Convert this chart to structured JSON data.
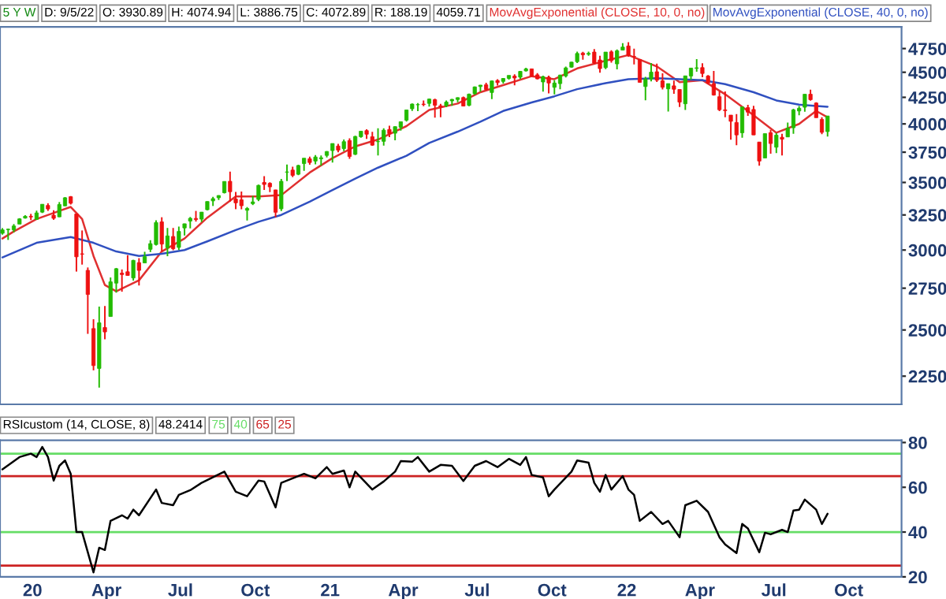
{
  "chart_data": [
    {
      "type": "candlestick",
      "title": "5 Y W",
      "annotations": [
        "D: 9/5/22",
        "O: 3930.89",
        "H: 4074.94",
        "L: 3886.75",
        "C: 4072.89",
        "R: 188.19",
        "4059.71"
      ],
      "x": [
        "2019-11-25",
        "2019-12-02",
        "2019-12-09",
        "2019-12-16",
        "2019-12-23",
        "2019-12-30",
        "2020-01-06",
        "2020-01-13",
        "2020-01-20",
        "2020-01-27",
        "2020-02-03",
        "2020-02-10",
        "2020-02-17",
        "2020-02-24",
        "2020-03-02",
        "2020-03-09",
        "2020-03-16",
        "2020-03-23",
        "2020-03-30",
        "2020-04-06",
        "2020-04-13",
        "2020-04-20",
        "2020-04-27",
        "2020-05-04",
        "2020-05-11",
        "2020-05-18",
        "2020-05-25",
        "2020-06-01",
        "2020-06-08",
        "2020-06-15",
        "2020-06-22",
        "2020-06-29",
        "2020-07-06",
        "2020-07-13",
        "2020-07-20",
        "2020-07-27",
        "2020-08-03",
        "2020-08-10",
        "2020-08-17",
        "2020-08-24",
        "2020-08-31",
        "2020-09-07",
        "2020-09-14",
        "2020-09-21",
        "2020-09-28",
        "2020-10-05",
        "2020-10-12",
        "2020-10-19",
        "2020-10-26",
        "2020-11-02",
        "2020-11-09",
        "2020-11-16",
        "2020-11-23",
        "2020-11-30",
        "2020-12-07",
        "2020-12-14",
        "2020-12-21",
        "2020-12-28",
        "2021-01-04",
        "2021-01-11",
        "2021-01-18",
        "2021-01-25",
        "2021-02-01",
        "2021-02-08",
        "2021-02-15",
        "2021-02-22",
        "2021-03-01",
        "2021-03-08",
        "2021-03-15",
        "2021-03-22",
        "2021-03-29",
        "2021-04-05",
        "2021-04-12",
        "2021-04-19",
        "2021-04-26",
        "2021-05-03",
        "2021-05-10",
        "2021-05-17",
        "2021-05-24",
        "2021-05-31",
        "2021-06-07",
        "2021-06-14",
        "2021-06-21",
        "2021-06-28",
        "2021-07-05",
        "2021-07-12",
        "2021-07-19",
        "2021-07-26",
        "2021-08-02",
        "2021-08-09",
        "2021-08-16",
        "2021-08-23",
        "2021-08-30",
        "2021-09-06",
        "2021-09-13",
        "2021-09-20",
        "2021-09-27",
        "2021-10-04",
        "2021-10-11",
        "2021-10-18",
        "2021-10-25",
        "2021-11-01",
        "2021-11-08",
        "2021-11-15",
        "2021-11-22",
        "2021-11-29",
        "2021-12-06",
        "2021-12-13",
        "2021-12-20",
        "2021-12-27",
        "2022-01-03",
        "2022-01-10",
        "2022-01-17",
        "2022-01-24",
        "2022-01-31",
        "2022-02-07",
        "2022-02-14",
        "2022-02-21",
        "2022-02-28",
        "2022-03-07",
        "2022-03-14",
        "2022-03-21",
        "2022-03-28",
        "2022-04-04",
        "2022-04-11",
        "2022-04-18",
        "2022-04-25",
        "2022-05-02",
        "2022-05-09",
        "2022-05-16",
        "2022-05-23",
        "2022-05-30",
        "2022-06-06",
        "2022-06-13",
        "2022-06-20",
        "2022-06-27",
        "2022-07-04",
        "2022-07-11",
        "2022-07-18",
        "2022-07-25",
        "2022-08-01",
        "2022-08-08",
        "2022-08-15",
        "2022-08-22",
        "2022-08-29",
        "2022-09-05"
      ],
      "ohlc": [
        [
          3117,
          3154,
          3107,
          3141
        ],
        [
          3143,
          3150,
          3070,
          3146
        ],
        [
          3141,
          3183,
          3123,
          3169
        ],
        [
          3183,
          3226,
          3183,
          3221
        ],
        [
          3227,
          3248,
          3223,
          3240
        ],
        [
          3240,
          3258,
          3212,
          3235
        ],
        [
          3217,
          3282,
          3214,
          3265
        ],
        [
          3271,
          3330,
          3264,
          3330
        ],
        [
          3321,
          3338,
          3280,
          3295
        ],
        [
          3248,
          3285,
          3214,
          3225
        ],
        [
          3236,
          3347,
          3234,
          3328
        ],
        [
          3318,
          3385,
          3316,
          3380
        ],
        [
          3388,
          3393,
          3328,
          3338
        ],
        [
          3257,
          3260,
          2856,
          2954
        ],
        [
          2974,
          3137,
          2902,
          2972
        ],
        [
          2864,
          2883,
          2478,
          2711
        ],
        [
          2508,
          2562,
          2280,
          2305
        ],
        [
          2290,
          2637,
          2192,
          2541
        ],
        [
          2514,
          2641,
          2447,
          2489
        ],
        [
          2578,
          2818,
          2577,
          2790
        ],
        [
          2782,
          2880,
          2722,
          2875
        ],
        [
          2846,
          2870,
          2728,
          2837
        ],
        [
          2855,
          2965,
          2830,
          2831
        ],
        [
          2815,
          2934,
          2798,
          2930
        ],
        [
          2915,
          2945,
          2767,
          2864
        ],
        [
          2913,
          2988,
          2913,
          2955
        ],
        [
          3005,
          3068,
          2986,
          3044
        ],
        [
          3038,
          3211,
          3031,
          3194
        ],
        [
          3199,
          3233,
          2991,
          3041
        ],
        [
          3016,
          3155,
          2958,
          3098
        ],
        [
          3094,
          3155,
          2999,
          3009
        ],
        [
          3018,
          3165,
          3000,
          3130
        ],
        [
          3155,
          3186,
          3101,
          3185
        ],
        [
          3205,
          3235,
          3152,
          3225
        ],
        [
          3224,
          3280,
          3201,
          3216
        ],
        [
          3219,
          3272,
          3198,
          3271
        ],
        [
          3289,
          3352,
          3284,
          3351
        ],
        [
          3356,
          3387,
          3317,
          3373
        ],
        [
          3380,
          3399,
          3363,
          3397
        ],
        [
          3419,
          3509,
          3413,
          3508
        ],
        [
          3509,
          3588,
          3350,
          3427
        ],
        [
          3370,
          3425,
          3293,
          3341
        ],
        [
          3364,
          3429,
          3292,
          3319
        ],
        [
          3285,
          3309,
          3209,
          3298
        ],
        [
          3335,
          3394,
          3324,
          3348
        ],
        [
          3367,
          3482,
          3354,
          3477
        ],
        [
          3500,
          3550,
          3441,
          3484
        ],
        [
          3493,
          3502,
          3424,
          3465
        ],
        [
          3441,
          3442,
          3233,
          3270
        ],
        [
          3296,
          3529,
          3279,
          3509
        ],
        [
          3583,
          3646,
          3511,
          3585
        ],
        [
          3600,
          3628,
          3543,
          3557
        ],
        [
          3566,
          3645,
          3558,
          3638
        ],
        [
          3654,
          3699,
          3594,
          3699
        ],
        [
          3694,
          3712,
          3644,
          3663
        ],
        [
          3675,
          3726,
          3647,
          3709
        ],
        [
          3694,
          3723,
          3636,
          3703
        ],
        [
          3723,
          3760,
          3705,
          3756
        ],
        [
          3764,
          3826,
          3663,
          3825
        ],
        [
          3803,
          3823,
          3749,
          3768
        ],
        [
          3781,
          3861,
          3760,
          3841
        ],
        [
          3851,
          3870,
          3694,
          3714
        ],
        [
          3732,
          3894,
          3725,
          3887
        ],
        [
          3885,
          3935,
          3875,
          3934
        ],
        [
          3939,
          3951,
          3865,
          3907
        ],
        [
          3885,
          3928,
          3805,
          3811
        ],
        [
          3842,
          3960,
          3723,
          3842
        ],
        [
          3844,
          3960,
          3806,
          3943
        ],
        [
          3949,
          3983,
          3881,
          3913
        ],
        [
          3916,
          3978,
          3853,
          3975
        ],
        [
          3969,
          4020,
          3939,
          4020
        ],
        [
          4034,
          4130,
          4021,
          4129
        ],
        [
          4141,
          4191,
          4120,
          4185
        ],
        [
          4179,
          4195,
          4118,
          4180
        ],
        [
          4185,
          4219,
          4164,
          4181
        ],
        [
          4192,
          4238,
          4161,
          4233
        ],
        [
          4228,
          4237,
          4057,
          4174
        ],
        [
          4169,
          4187,
          4062,
          4156
        ],
        [
          4170,
          4219,
          4156,
          4204
        ],
        [
          4216,
          4234,
          4168,
          4230
        ],
        [
          4229,
          4249,
          4203,
          4247
        ],
        [
          4248,
          4257,
          4164,
          4166
        ],
        [
          4173,
          4286,
          4165,
          4281
        ],
        [
          4285,
          4356,
          4275,
          4352
        ],
        [
          4356,
          4372,
          4304,
          4370
        ],
        [
          4373,
          4393,
          4319,
          4327
        ],
        [
          4297,
          4415,
          4233,
          4412
        ],
        [
          4416,
          4430,
          4366,
          4395
        ],
        [
          4407,
          4442,
          4385,
          4437
        ],
        [
          4438,
          4468,
          4425,
          4468
        ],
        [
          4461,
          4480,
          4368,
          4442
        ],
        [
          4450,
          4513,
          4432,
          4509
        ],
        [
          4514,
          4546,
          4508,
          4535
        ],
        [
          4535,
          4536,
          4457,
          4459
        ],
        [
          4474,
          4492,
          4427,
          4433
        ],
        [
          4402,
          4466,
          4306,
          4455
        ],
        [
          4450,
          4466,
          4288,
          4391
        ],
        [
          4348,
          4419,
          4279,
          4391
        ],
        [
          4385,
          4475,
          4329,
          4471
        ],
        [
          4463,
          4559,
          4447,
          4545
        ],
        [
          4553,
          4608,
          4548,
          4605
        ],
        [
          4610,
          4718,
          4596,
          4697
        ],
        [
          4701,
          4714,
          4630,
          4683
        ],
        [
          4689,
          4718,
          4672,
          4698
        ],
        [
          4712,
          4744,
          4585,
          4595
        ],
        [
          4628,
          4672,
          4495,
          4538
        ],
        [
          4548,
          4713,
          4532,
          4712
        ],
        [
          4714,
          4731,
          4600,
          4621
        ],
        [
          4587,
          4740,
          4531,
          4726
        ],
        [
          4733,
          4808,
          4733,
          4766
        ],
        [
          4778,
          4819,
          4663,
          4677
        ],
        [
          4665,
          4749,
          4582,
          4663
        ],
        [
          4632,
          4632,
          4395,
          4398
        ],
        [
          4356,
          4453,
          4222,
          4432
        ],
        [
          4432,
          4595,
          4408,
          4501
        ],
        [
          4505,
          4590,
          4401,
          4419
        ],
        [
          4413,
          4490,
          4327,
          4349
        ],
        [
          4333,
          4386,
          4115,
          4385
        ],
        [
          4363,
          4416,
          4284,
          4329
        ],
        [
          4327,
          4327,
          4157,
          4204
        ],
        [
          4188,
          4465,
          4129,
          4463
        ],
        [
          4462,
          4546,
          4424,
          4543
        ],
        [
          4541,
          4637,
          4505,
          4546
        ],
        [
          4548,
          4594,
          4450,
          4488
        ],
        [
          4462,
          4471,
          4381,
          4392
        ],
        [
          4385,
          4513,
          4267,
          4272
        ],
        [
          4256,
          4308,
          4118,
          4132
        ],
        [
          4130,
          4308,
          4062,
          4123
        ],
        [
          4081,
          4082,
          3859,
          4024
        ],
        [
          4013,
          4090,
          3811,
          3901
        ],
        [
          3920,
          4158,
          3876,
          4158
        ],
        [
          4151,
          4178,
          4074,
          4109
        ],
        [
          4134,
          4169,
          3901,
          3901
        ],
        [
          3838,
          3838,
          3637,
          3675
        ],
        [
          3701,
          3913,
          3700,
          3912
        ],
        [
          3921,
          3946,
          3738,
          3825
        ],
        [
          3793,
          3918,
          3742,
          3899
        ],
        [
          3880,
          3910,
          3722,
          3863
        ],
        [
          3883,
          4012,
          3883,
          3962
        ],
        [
          3965,
          4140,
          3910,
          4130
        ],
        [
          4120,
          4167,
          4079,
          4145
        ],
        [
          4155,
          4280,
          4112,
          4280
        ],
        [
          4280,
          4326,
          4218,
          4228
        ],
        [
          4195,
          4203,
          4057,
          4057
        ],
        [
          4041,
          4062,
          3907,
          3924
        ],
        [
          3930.89,
          4074.94,
          3886.75,
          4072.89
        ]
      ],
      "series": [
        {
          "type": "line",
          "name": "MovAvgExponential (CLOSE, 10, 0, no)",
          "color": "#e03030",
          "x": [
            "2019-11-25",
            "2019-12-09",
            "2020-01-06",
            "2020-02-03",
            "2020-02-17",
            "2020-03-02",
            "2020-03-16",
            "2020-03-30",
            "2020-04-13",
            "2020-05-11",
            "2020-06-08",
            "2020-07-06",
            "2020-08-03",
            "2020-09-07",
            "2020-10-05",
            "2020-11-02",
            "2020-12-07",
            "2021-01-04",
            "2021-02-01",
            "2021-03-01",
            "2021-04-05",
            "2021-05-03",
            "2021-06-07",
            "2021-07-05",
            "2021-08-02",
            "2021-09-06",
            "2021-10-04",
            "2021-11-01",
            "2021-12-06",
            "2022-01-03",
            "2022-02-07",
            "2022-03-07",
            "2022-04-04",
            "2022-05-02",
            "2022-06-06",
            "2022-07-04",
            "2022-08-01",
            "2022-08-22",
            "2022-09-05"
          ],
          "values": [
            3080,
            3130,
            3220,
            3280,
            3310,
            3220,
            2960,
            2770,
            2730,
            2800,
            2990,
            3080,
            3230,
            3390,
            3390,
            3400,
            3580,
            3700,
            3800,
            3860,
            3980,
            4130,
            4190,
            4300,
            4370,
            4460,
            4430,
            4540,
            4620,
            4680,
            4560,
            4400,
            4420,
            4280,
            4080,
            3920,
            4000,
            4120,
            4060
          ]
        },
        {
          "type": "line",
          "name": "MovAvgExponential (CLOSE, 40, 0, no)",
          "color": "#3050c0",
          "x": [
            "2019-11-25",
            "2020-01-06",
            "2020-02-17",
            "2020-03-16",
            "2020-04-13",
            "2020-05-11",
            "2020-06-08",
            "2020-07-06",
            "2020-08-03",
            "2020-09-07",
            "2020-10-05",
            "2020-11-02",
            "2020-12-07",
            "2021-01-04",
            "2021-02-01",
            "2021-03-01",
            "2021-04-05",
            "2021-05-03",
            "2021-06-07",
            "2021-07-05",
            "2021-08-02",
            "2021-09-06",
            "2021-10-04",
            "2021-11-01",
            "2021-12-06",
            "2022-01-03",
            "2022-02-07",
            "2022-03-07",
            "2022-04-04",
            "2022-05-02",
            "2022-06-06",
            "2022-07-04",
            "2022-08-01",
            "2022-09-05"
          ],
          "values": [
            2950,
            3050,
            3090,
            3050,
            2990,
            2960,
            2975,
            3000,
            3060,
            3140,
            3200,
            3250,
            3350,
            3440,
            3530,
            3620,
            3720,
            3830,
            3930,
            4020,
            4120,
            4200,
            4260,
            4330,
            4390,
            4430,
            4440,
            4430,
            4420,
            4380,
            4300,
            4220,
            4180,
            4160
          ]
        }
      ],
      "log": true,
      "xlim": [
        "2019-11-22",
        "2022-12-05"
      ],
      "ylim": [
        2110,
        4990
      ],
      "yticks": [
        2250,
        2500,
        2750,
        3000,
        3250,
        3500,
        3750,
        4000,
        4250,
        4500,
        4750
      ],
      "tick_labels": "y",
      "grid": false
    },
    {
      "type": "line",
      "title": "RSIcustom (14, CLOSE, 8)",
      "annotations": [
        "48.2414"
      ],
      "series": [
        {
          "color": "#000000",
          "x": [
            "2019-11-25",
            "2019-12-16",
            "2019-12-30",
            "2020-01-06",
            "2020-01-13",
            "2020-01-20",
            "2020-01-27",
            "2020-02-03",
            "2020-02-10",
            "2020-02-17",
            "2020-02-24",
            "2020-03-02",
            "2020-03-09",
            "2020-03-16",
            "2020-03-23",
            "2020-03-30",
            "2020-04-06",
            "2020-04-20",
            "2020-04-27",
            "2020-05-04",
            "2020-05-11",
            "2020-06-01",
            "2020-06-08",
            "2020-06-22",
            "2020-06-29",
            "2020-07-13",
            "2020-07-27",
            "2020-08-24",
            "2020-09-07",
            "2020-09-21",
            "2020-10-05",
            "2020-10-12",
            "2020-10-26",
            "2020-11-02",
            "2020-11-30",
            "2020-12-14",
            "2020-12-28",
            "2021-01-04",
            "2021-01-18",
            "2021-01-25",
            "2021-02-01",
            "2021-02-22",
            "2021-03-08",
            "2021-03-22",
            "2021-03-29",
            "2021-04-12",
            "2021-04-19",
            "2021-05-03",
            "2021-05-17",
            "2021-05-31",
            "2021-06-14",
            "2021-06-28",
            "2021-07-12",
            "2021-07-26",
            "2021-08-09",
            "2021-08-23",
            "2021-08-30",
            "2021-09-06",
            "2021-09-20",
            "2021-09-27",
            "2021-10-04",
            "2021-10-25",
            "2021-11-01",
            "2021-11-15",
            "2021-11-22",
            "2021-11-29",
            "2021-12-06",
            "2021-12-13",
            "2021-12-27",
            "2022-01-03",
            "2022-01-10",
            "2022-01-17",
            "2022-01-31",
            "2022-02-14",
            "2022-02-21",
            "2022-03-07",
            "2022-03-14",
            "2022-03-28",
            "2022-04-11",
            "2022-04-25",
            "2022-05-02",
            "2022-05-16",
            "2022-05-23",
            "2022-05-30",
            "2022-06-13",
            "2022-06-20",
            "2022-06-27",
            "2022-07-11",
            "2022-07-18",
            "2022-07-25",
            "2022-08-01",
            "2022-08-08",
            "2022-08-22",
            "2022-08-29",
            "2022-09-05"
          ],
          "values": [
            68,
            73.5,
            75,
            73.5,
            78,
            73.5,
            63,
            69.6,
            72,
            66,
            40,
            40,
            31,
            22,
            33,
            32,
            45,
            47.5,
            46,
            50,
            47.5,
            59,
            53,
            52,
            56.6,
            58.7,
            62,
            67,
            58,
            56,
            63,
            62.6,
            51,
            62,
            66,
            64,
            69,
            66,
            67.5,
            60,
            67,
            59,
            62.6,
            67,
            71.7,
            71.4,
            73.5,
            67,
            70,
            69.6,
            62.8,
            69.6,
            71.7,
            69,
            72.7,
            70,
            73.5,
            65.5,
            64.4,
            56,
            59,
            67,
            72,
            71,
            62,
            58,
            65.5,
            59,
            65,
            59,
            56.6,
            45,
            49,
            43.6,
            45,
            37.7,
            52,
            54,
            49,
            37.7,
            34.5,
            30.6,
            43.6,
            41.6,
            31,
            39.7,
            39,
            41,
            40,
            49.6,
            50,
            54.5,
            50,
            43.6,
            48.2
          ]
        }
      ],
      "ref_lines": [
        {
          "axis": "y",
          "value": 75,
          "label": "75",
          "color": "#66dd66"
        },
        {
          "axis": "y",
          "value": 40,
          "label": "40",
          "color": "#66dd66"
        },
        {
          "axis": "y",
          "value": 65,
          "label": "65",
          "color": "#cc2222"
        },
        {
          "axis": "y",
          "value": 25,
          "label": "25",
          "color": "#cc2222"
        }
      ],
      "xlim": [
        "2019-11-22",
        "2022-12-05"
      ],
      "xticks": [
        {
          "value": "2020-01-01",
          "label": "20"
        },
        {
          "value": "2020-04-01",
          "label": "Apr"
        },
        {
          "value": "2020-07-01",
          "label": "Jul"
        },
        {
          "value": "2020-10-01",
          "label": "Oct"
        },
        {
          "value": "2021-01-01",
          "label": "21"
        },
        {
          "value": "2021-04-01",
          "label": "Apr"
        },
        {
          "value": "2021-07-01",
          "label": "Jul"
        },
        {
          "value": "2021-10-01",
          "label": "Oct"
        },
        {
          "value": "2022-01-01",
          "label": "22"
        },
        {
          "value": "2022-04-01",
          "label": "Apr"
        },
        {
          "value": "2022-07-01",
          "label": "Jul"
        },
        {
          "value": "2022-10-01",
          "label": "Oct"
        }
      ],
      "ylim": [
        20,
        81
      ],
      "yticks": [
        20,
        40,
        60,
        80
      ],
      "grid": false
    }
  ]
}
